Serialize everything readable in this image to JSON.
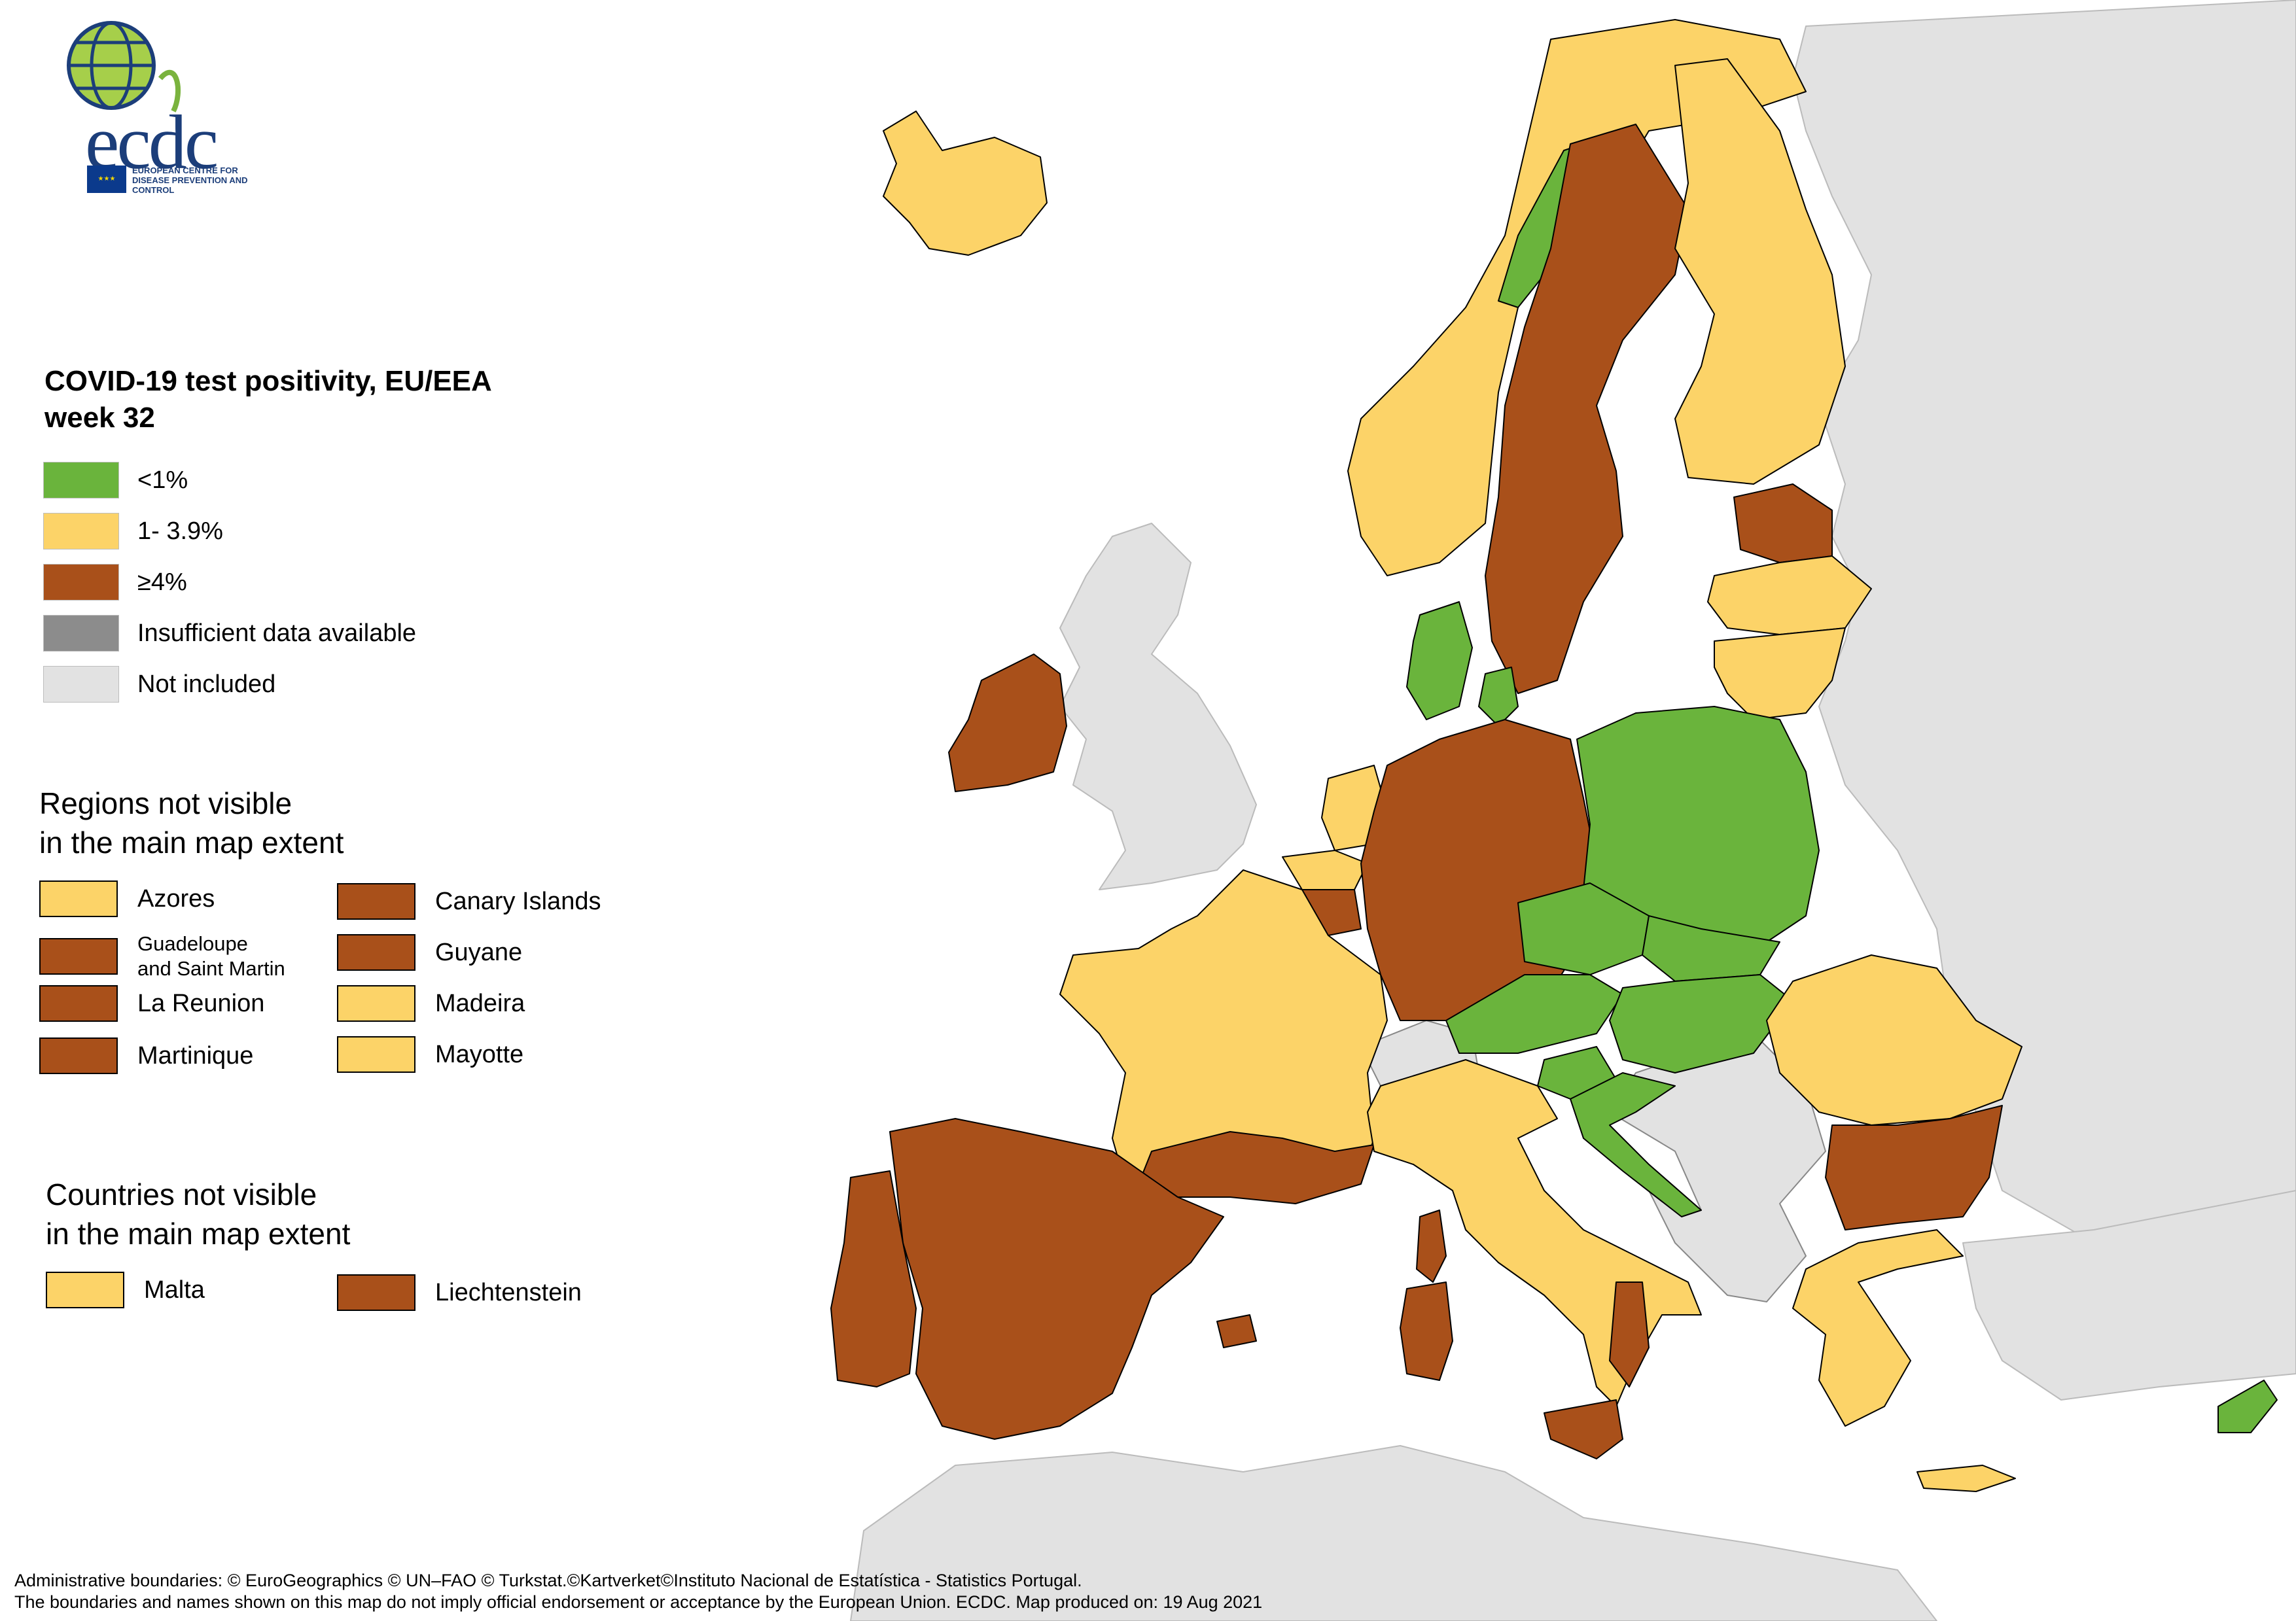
{
  "colors": {
    "green": "#6ab43c",
    "yellow": "#fcd368",
    "brown": "#a9501a",
    "grey_insufficient": "#8c8c8c",
    "grey_not_included": "#e2e2e2",
    "sea": "#ffffff"
  },
  "logo": {
    "word": "ecdc",
    "subtitle": "EUROPEAN CENTRE FOR DISEASE PREVENTION AND CONTROL"
  },
  "legend": {
    "title_line1": "COVID-19 test positivity, EU/EEA",
    "title_line2": "week 32",
    "items": [
      {
        "label": "<1%",
        "color": "#6ab43c"
      },
      {
        "label": "1- 3.9%",
        "color": "#fcd368"
      },
      {
        "label": "≥4%",
        "color": "#a9501a"
      },
      {
        "label": "Insufficient data available",
        "color": "#8c8c8c"
      },
      {
        "label": "Not included",
        "color": "#e2e2e2"
      }
    ]
  },
  "regions_section": {
    "title_line1": "Regions not visible",
    "title_line2": "in the main map extent",
    "items": [
      {
        "label": "Azores",
        "color": "#fcd368"
      },
      {
        "label": "Canary Islands",
        "color": "#a9501a"
      },
      {
        "label": "Guadeloupe",
        "label2": "and Saint Martin",
        "color": "#a9501a"
      },
      {
        "label": "Guyane",
        "color": "#a9501a"
      },
      {
        "label": "La Reunion",
        "color": "#a9501a"
      },
      {
        "label": "Madeira",
        "color": "#fcd368"
      },
      {
        "label": "Martinique",
        "color": "#a9501a"
      },
      {
        "label": "Mayotte",
        "color": "#fcd368"
      }
    ]
  },
  "countries_section": {
    "title_line1": "Countries not visible",
    "title_line2": "in the main map extent",
    "items": [
      {
        "label": "Malta",
        "color": "#fcd368"
      },
      {
        "label": "Liechtenstein",
        "color": "#a9501a"
      }
    ]
  },
  "countries": [
    {
      "name": "Iceland",
      "category": "1- 3.9%"
    },
    {
      "name": "Norway",
      "category": "1- 3.9%"
    },
    {
      "name": "Sweden",
      "category": "≥4%"
    },
    {
      "name": "Finland",
      "category": "1- 3.9%"
    },
    {
      "name": "Estonia",
      "category": "≥4%"
    },
    {
      "name": "Latvia",
      "category": "1- 3.9%"
    },
    {
      "name": "Lithuania",
      "category": "1- 3.9%"
    },
    {
      "name": "Denmark",
      "category": "<1%"
    },
    {
      "name": "Ireland",
      "category": "≥4%"
    },
    {
      "name": "Netherlands",
      "category": "1- 3.9%"
    },
    {
      "name": "Belgium",
      "category": "1- 3.9%"
    },
    {
      "name": "Luxembourg",
      "category": "≥4%"
    },
    {
      "name": "Germany",
      "category": "≥4%"
    },
    {
      "name": "Poland",
      "category": "<1%"
    },
    {
      "name": "Czechia",
      "category": "<1%"
    },
    {
      "name": "Slovakia",
      "category": "<1%"
    },
    {
      "name": "Austria",
      "category": "<1%"
    },
    {
      "name": "Hungary",
      "category": "<1%"
    },
    {
      "name": "Slovenia",
      "category": "<1%"
    },
    {
      "name": "Croatia",
      "category": "<1%"
    },
    {
      "name": "Romania",
      "category": "1- 3.9%"
    },
    {
      "name": "Bulgaria",
      "category": "≥4%"
    },
    {
      "name": "Greece",
      "category": "1- 3.9%"
    },
    {
      "name": "Cyprus",
      "category": "<1%"
    },
    {
      "name": "France",
      "category": "1- 3.9%"
    },
    {
      "name": "Spain",
      "category": "≥4%"
    },
    {
      "name": "Portugal",
      "category": "≥4%"
    },
    {
      "name": "Italy",
      "category": "1- 3.9%"
    },
    {
      "name": "Switzerland",
      "category": "Not included"
    },
    {
      "name": "United Kingdom",
      "category": "Not included"
    }
  ],
  "footer": {
    "line1": "Administrative boundaries: © EuroGeographics © UN–FAO © Turkstat.©Kartverket©Instituto Nacional de Estatística - Statistics Portugal.",
    "line2": "The boundaries and names shown on this map do not imply official endorsement or acceptance by the European Union. ECDC. Map produced on: 19 Aug 2021"
  }
}
